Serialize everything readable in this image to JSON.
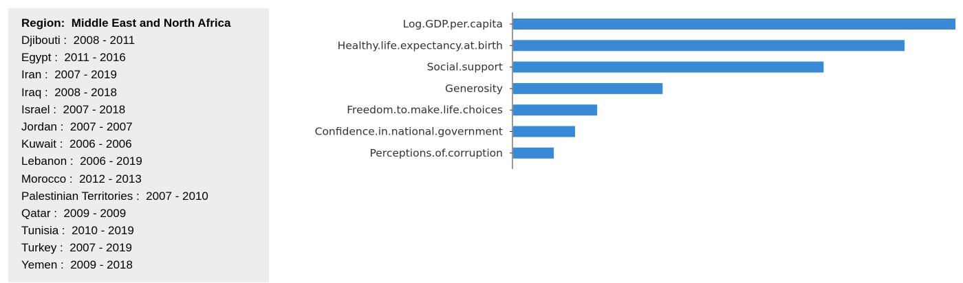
{
  "panel": {
    "title": "Region:  Middle East and North Africa",
    "countries": [
      {
        "name": "Djibouti",
        "years": "2008 - 2011"
      },
      {
        "name": "Egypt",
        "years": "2011 - 2016"
      },
      {
        "name": "Iran",
        "years": "2007 - 2019"
      },
      {
        "name": "Iraq",
        "years": "2008 - 2018"
      },
      {
        "name": "Israel",
        "years": "2007 - 2018"
      },
      {
        "name": "Jordan",
        "years": "2007 - 2007"
      },
      {
        "name": "Kuwait",
        "years": "2006 - 2006"
      },
      {
        "name": "Lebanon",
        "years": "2006 - 2019"
      },
      {
        "name": "Morocco",
        "years": "2012 - 2013"
      },
      {
        "name": "Palestinian Territories",
        "years": "2007 - 2010"
      },
      {
        "name": "Qatar",
        "years": "2009 - 2009"
      },
      {
        "name": "Tunisia",
        "years": "2010 - 2019"
      },
      {
        "name": "Turkey",
        "years": "2007 - 2019"
      },
      {
        "name": "Yemen",
        "years": "2009 - 2018"
      }
    ]
  },
  "chart_data": {
    "type": "bar",
    "orientation": "horizontal",
    "categories": [
      "Log.GDP.per.capita",
      "Healthy.life.expectancy.at.birth",
      "Social.support",
      "Generosity",
      "Freedom.to.make.life.choices",
      "Confidence.in.national.government",
      "Perceptions.of.corruption"
    ],
    "values": [
      1.0,
      0.885,
      0.702,
      0.338,
      0.19,
      0.14,
      0.092
    ],
    "xlim": [
      0,
      1.0
    ],
    "grid": false,
    "legend": "none",
    "bar_color": "#3a89d4"
  }
}
